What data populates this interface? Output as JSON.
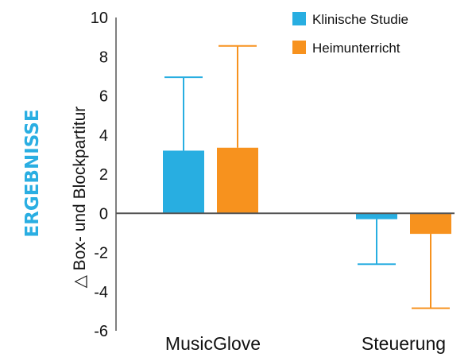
{
  "side_title": "ERGEBNISSE",
  "colors": {
    "side_title": "#2aaee2",
    "series_1": "#28aee1",
    "series_2": "#f7921e",
    "axis": "#555555",
    "text": "#111111"
  },
  "chart_data": {
    "type": "bar",
    "ylabel": "△ Box- und Blockpartitur",
    "xlabel": "",
    "ylim": [
      -6,
      10
    ],
    "yticks": [
      "10",
      "8",
      "6",
      "4",
      "2",
      "0",
      "-2",
      "-4",
      "-6"
    ],
    "categories": [
      "MusicGlove",
      "Steuerung"
    ],
    "legend_position": "top-right",
    "error_bars": "upper for positive bars, lower for negative bars",
    "series": [
      {
        "name": "Klinische Studie",
        "color": "#28aee1",
        "values": [
          3.2,
          -0.3
        ],
        "error": [
          3.75,
          2.3
        ]
      },
      {
        "name": "Heimunterricht",
        "color": "#f7921e",
        "values": [
          3.35,
          -1.05
        ],
        "error": [
          5.2,
          3.8
        ]
      }
    ]
  }
}
